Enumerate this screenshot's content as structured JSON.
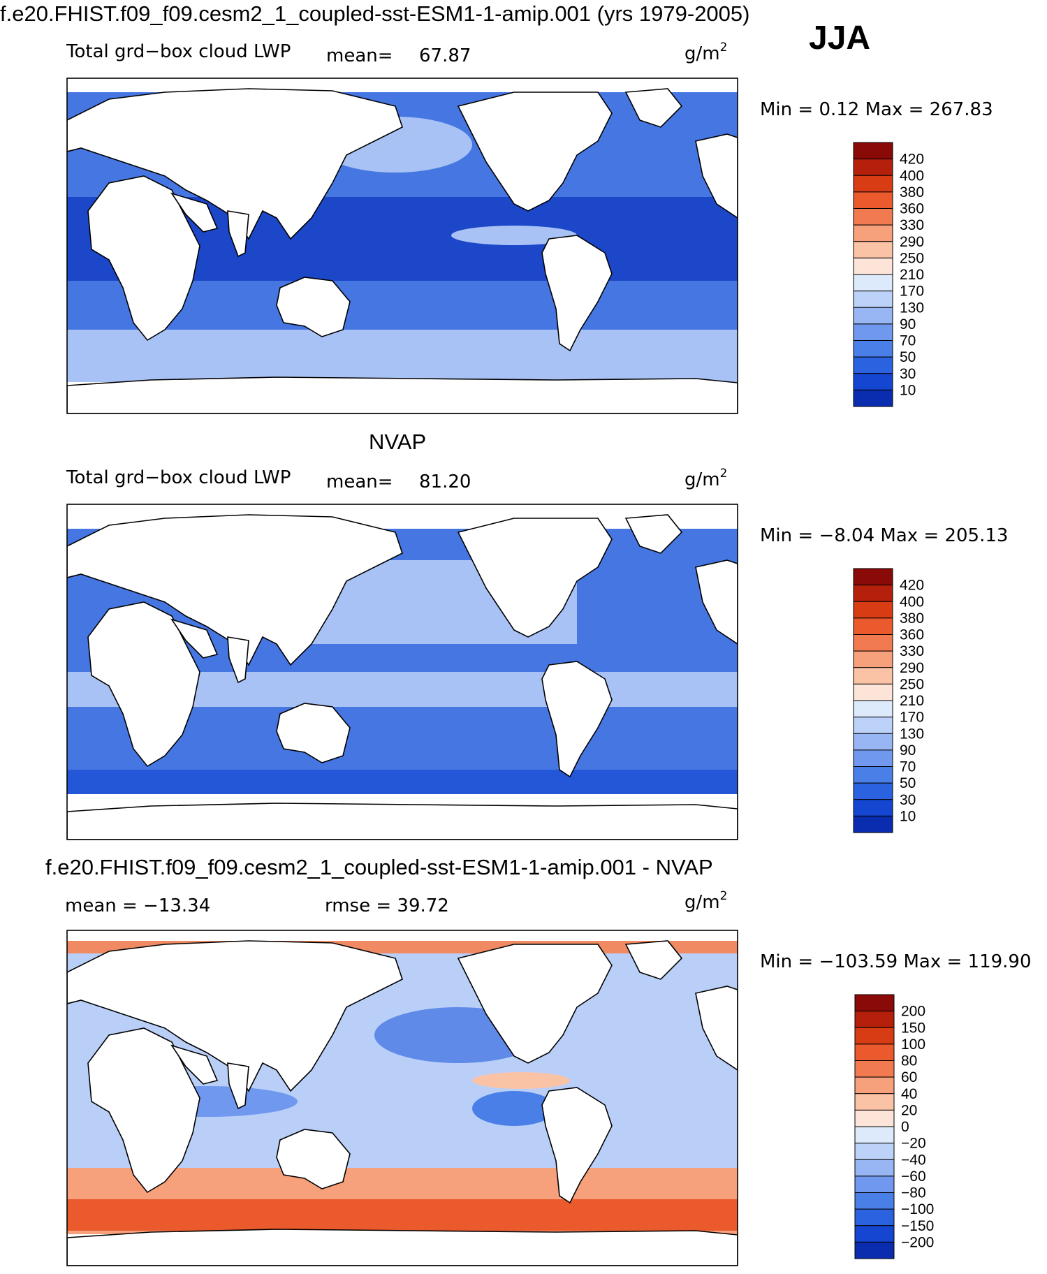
{
  "title_top": "f.e20.FHIST.f09_f09.cesm2_1_coupled-sst-ESM1-1-amip.001 (yrs 1979-2005)",
  "season": "JJA",
  "title_mid": "NVAP",
  "title_bottom": "f.e20.FHIST.f09_f09.cesm2_1_coupled-sst-ESM1-1-amip.001 - NVAP",
  "colors": {
    "abs": [
      "#061a85",
      "#0a2db0",
      "#1446d2",
      "#2a62e0",
      "#4a7fe8",
      "#7098ee",
      "#98b6f4",
      "#bdd2f8",
      "#ddeafb",
      "#fde4d8",
      "#fbc3a6",
      "#f7a07c",
      "#f27a50",
      "#ea5a2c",
      "#d73c14",
      "#b5200c",
      "#8a0a08"
    ],
    "diff": [
      "#061a85",
      "#0a2db0",
      "#1446d2",
      "#2a62e0",
      "#4a7fe8",
      "#7098ee",
      "#98b6f4",
      "#bdd2f8",
      "#ddeafb",
      "#fde4d8",
      "#fbc3a6",
      "#f7a07c",
      "#f27a50",
      "#ea5a2c",
      "#d73c14",
      "#b5200c",
      "#8a0a08"
    ],
    "ocean_deep": "#1c47c8",
    "ocean_mid": "#4676e2",
    "ocean_light": "#a9c2f5",
    "diff_blue": "#b9cff8",
    "diff_red": "#f08a62"
  },
  "chart_data": [
    {
      "type": "heatmap",
      "label": "Total grd−box cloud LWP",
      "mean_text": "mean=",
      "mean": "67.87",
      "units": "g/m",
      "units_sup": "2",
      "minmax": "Min =    0.12 Max = 267.83",
      "min": 0.12,
      "max": 267.83,
      "colorbar_levels": [
        "420",
        "400",
        "380",
        "360",
        "330",
        "290",
        "250",
        "210",
        "170",
        "130",
        "90",
        "70",
        "50",
        "30",
        "10"
      ]
    },
    {
      "type": "heatmap",
      "label": "Total grd−box cloud LWP",
      "mean_text": "mean=",
      "mean": "81.20",
      "units": "g/m",
      "units_sup": "2",
      "minmax": "Min =  −8.04 Max = 205.13",
      "min": -8.04,
      "max": 205.13,
      "colorbar_levels": [
        "420",
        "400",
        "380",
        "360",
        "330",
        "290",
        "250",
        "210",
        "170",
        "130",
        "90",
        "70",
        "50",
        "30",
        "10"
      ]
    },
    {
      "type": "heatmap",
      "mean_text": "mean = −13.34",
      "mean": -13.34,
      "rmse_text": "rmse =   39.72",
      "rmse": 39.72,
      "units": "g/m",
      "units_sup": "2",
      "minmax": "Min = −103.59 Max = 119.90",
      "min": -103.59,
      "max": 119.9,
      "colorbar_levels": [
        "200",
        "150",
        "100",
        "80",
        "60",
        "40",
        "20",
        "0",
        "−20",
        "−40",
        "−60",
        "−80",
        "−100",
        "−150",
        "−200"
      ]
    }
  ]
}
